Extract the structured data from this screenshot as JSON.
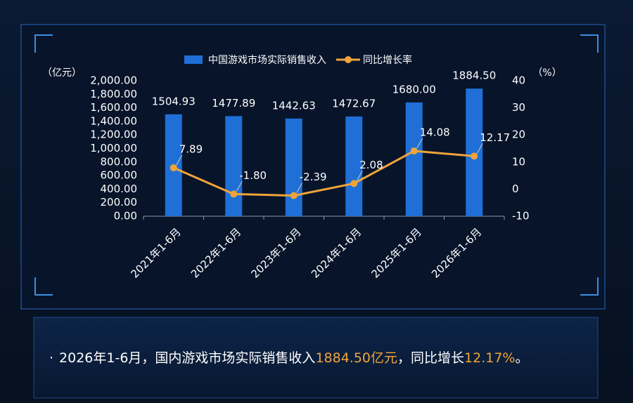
{
  "chart_data": {
    "type": "combo",
    "legend": true,
    "categories": [
      "2021年1-6月",
      "2022年1-6月",
      "2023年1-6月",
      "2024年1-6月",
      "2025年1-6月",
      "2026年1-6月"
    ],
    "y_label": "（亿元）",
    "y2_label": "（%）",
    "ylim": [
      0,
      2000
    ],
    "yticks": [
      {
        "value": 0,
        "label": "0.00"
      },
      {
        "value": 200,
        "label": "200.00"
      },
      {
        "value": 400,
        "label": "400.00"
      },
      {
        "value": 600,
        "label": "600.00"
      },
      {
        "value": 800,
        "label": "800.00"
      },
      {
        "value": 1000,
        "label": "1,000.00"
      },
      {
        "value": 1200,
        "label": "1,200.00"
      },
      {
        "value": 1400,
        "label": "1,400.00"
      },
      {
        "value": 1600,
        "label": "1,600.00"
      },
      {
        "value": 1800,
        "label": "1,800.00"
      },
      {
        "value": 2000,
        "label": "2,000.00"
      }
    ],
    "y2lim": [
      -10,
      40
    ],
    "y2ticks": [
      -10,
      0,
      10,
      20,
      30,
      40
    ],
    "series": [
      {
        "name": "中国游戏市场实际销售收入",
        "type": "bar",
        "color": "#1f6fd6",
        "values": [
          1504.93,
          1477.89,
          1442.63,
          1472.67,
          1680.0,
          1884.5
        ],
        "value_labels": [
          "1504.93",
          "1477.89",
          "1442.63",
          "1472.67",
          "1680.00",
          "1884.50"
        ]
      },
      {
        "name": "同比增长率",
        "type": "line",
        "axis": "y2",
        "color": "#f0a43a",
        "values": [
          7.89,
          -1.8,
          -2.39,
          2.08,
          14.08,
          12.17
        ],
        "value_labels": [
          "7.89",
          "-1.80",
          "-2.39",
          "2.08",
          "14.08",
          "12.17"
        ]
      }
    ]
  },
  "summary": {
    "bullet": "·",
    "prefix": "2026年1-6月，国内游戏市场实际销售收入",
    "revenue": "1884.50亿元",
    "middle": "，同比增长",
    "growth": "12.17%",
    "suffix": "。"
  }
}
